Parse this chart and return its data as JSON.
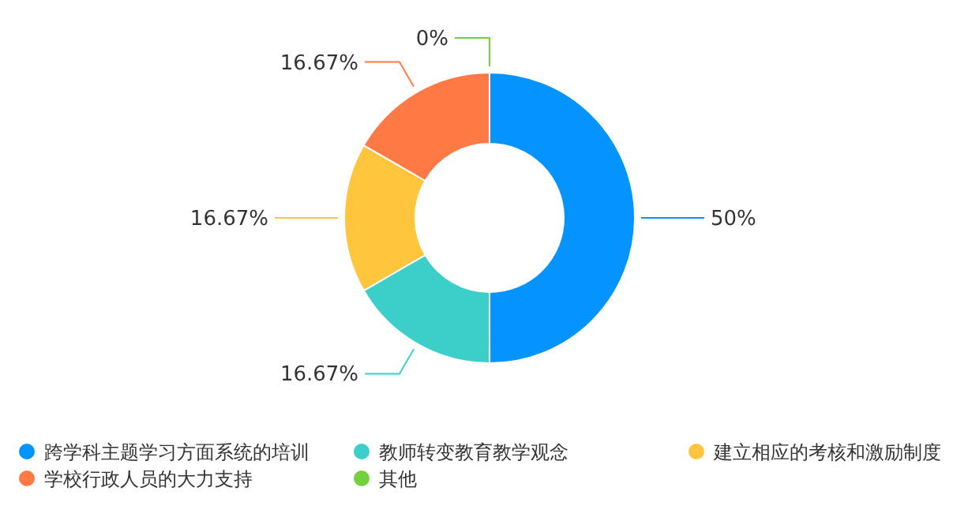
{
  "chart_data": {
    "type": "donut",
    "categories": [
      "跨学科主题学习方面系统的培训",
      "教师转变教育教学观念",
      "建立相应的考核和激励制度",
      "学校行政人员的大力支持",
      "其他"
    ],
    "values": [
      50,
      16.67,
      16.67,
      16.67,
      0
    ],
    "colors": [
      "#0593ff",
      "#3ccfca",
      "#ffc53d",
      "#ff7a45",
      "#73d13d"
    ],
    "value_labels": [
      "50%",
      "16.67%",
      "16.67%",
      "16.67%",
      "0%"
    ],
    "legend": "bottom"
  }
}
